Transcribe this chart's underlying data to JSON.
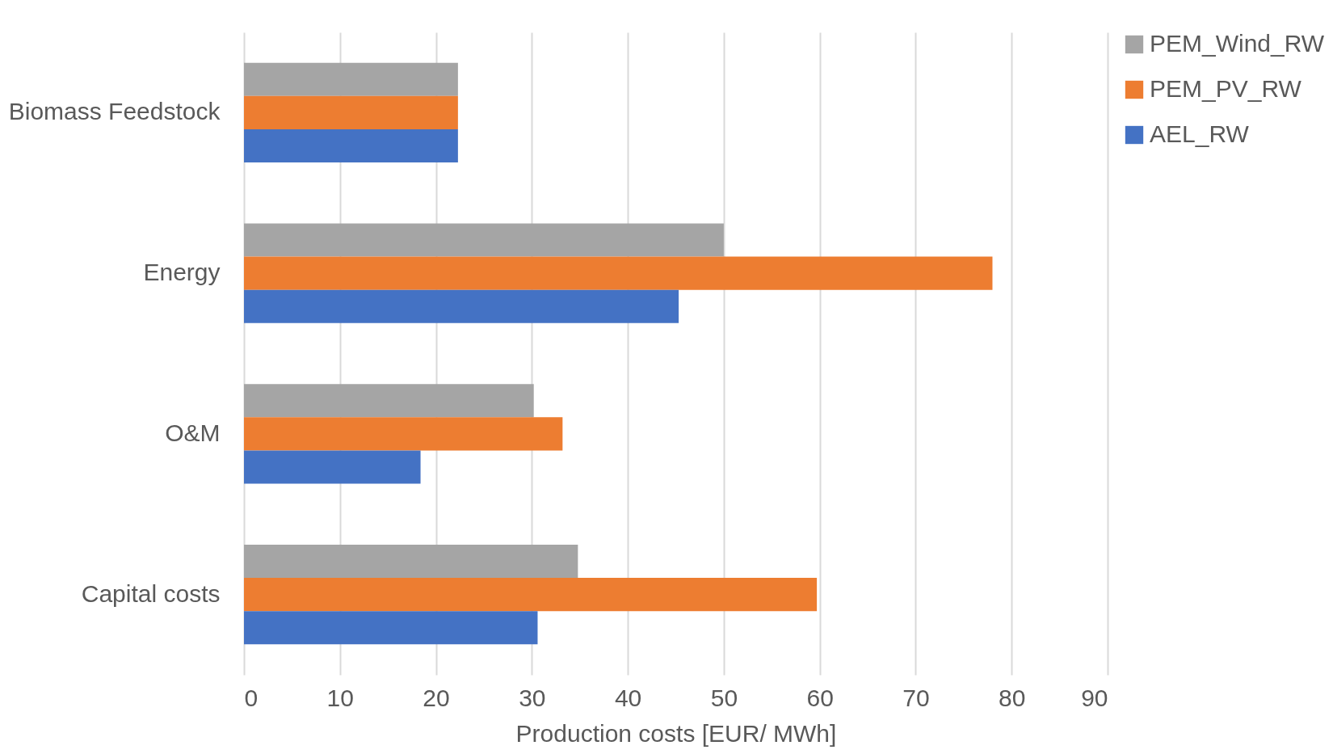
{
  "chart_data": {
    "type": "bar",
    "orientation": "horizontal",
    "xlabel": "Production costs [EUR/ MWh]",
    "categories": [
      "Biomass Feedstock",
      "Energy",
      "O&M",
      "Capital costs"
    ],
    "series": [
      {
        "name": "PEM_Wind_RW",
        "color": "#a5a5a5",
        "values": [
          22.3,
          50,
          30.2,
          34.8
        ]
      },
      {
        "name": "PEM_PV_RW",
        "color": "#ed7d31",
        "values": [
          22.3,
          78,
          33.2,
          59.7
        ]
      },
      {
        "name": "AEL_RW",
        "color": "#4472c4",
        "values": [
          22.3,
          45.3,
          18.4,
          30.6
        ]
      }
    ],
    "xlim": [
      0,
      90
    ],
    "xticks": [
      0,
      10,
      20,
      30,
      40,
      50,
      60,
      70,
      80,
      90
    ],
    "grid": "x",
    "legend": "right"
  }
}
